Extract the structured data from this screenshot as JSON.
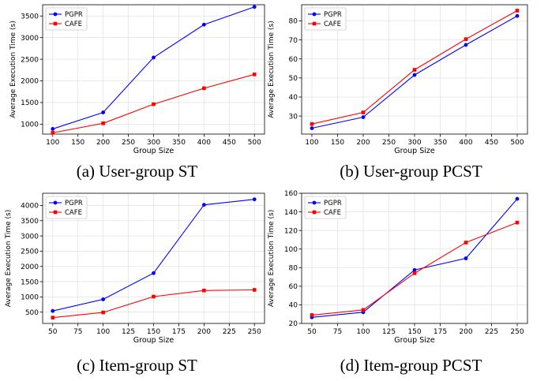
{
  "captions": [
    "(a) User-group ST",
    "(b) User-group PCST",
    "(c) Item-group ST",
    "(d) Item-group PCST"
  ],
  "colors": {
    "PGPR": "#0000ff",
    "CAFE": "#ff0000",
    "grid": "#e3e3e3"
  },
  "chart_data": [
    {
      "type": "line",
      "xlabel": "Group Size",
      "ylabel": "Average Execution Time (s)",
      "x": [
        100,
        200,
        300,
        400,
        500
      ],
      "xticks": [
        100,
        150,
        200,
        250,
        300,
        350,
        400,
        450,
        500
      ],
      "xlim": [
        80,
        520
      ],
      "yticks": [
        1000,
        1500,
        2000,
        2500,
        3000,
        3500
      ],
      "ylim": [
        770,
        3760
      ],
      "grid": true,
      "legend": "top-left",
      "series": [
        {
          "name": "PGPR",
          "marker": "circle",
          "values": [
            890,
            1270,
            2540,
            3300,
            3710
          ]
        },
        {
          "name": "CAFE",
          "marker": "square",
          "values": [
            800,
            1020,
            1460,
            1830,
            2150
          ]
        }
      ]
    },
    {
      "type": "line",
      "xlabel": "Group Size",
      "ylabel": "Average Execution Time (s)",
      "x": [
        100,
        200,
        300,
        400,
        500
      ],
      "xticks": [
        100,
        150,
        200,
        250,
        300,
        350,
        400,
        450,
        500
      ],
      "xlim": [
        80,
        520
      ],
      "yticks": [
        30,
        40,
        50,
        60,
        70,
        80
      ],
      "ylim": [
        20.5,
        88.5
      ],
      "grid": true,
      "legend": "top-left",
      "series": [
        {
          "name": "PGPR",
          "marker": "circle",
          "values": [
            23.6,
            29.4,
            51.6,
            67.4,
            82.6
          ]
        },
        {
          "name": "CAFE",
          "marker": "square",
          "values": [
            25.8,
            31.9,
            54.3,
            70.4,
            85.4
          ]
        }
      ]
    },
    {
      "type": "line",
      "xlabel": "Group Size",
      "ylabel": "Average Execution Time (s)",
      "x": [
        50,
        100,
        150,
        200,
        250
      ],
      "xticks": [
        50,
        75,
        100,
        125,
        150,
        175,
        200,
        225,
        250
      ],
      "xlim": [
        40,
        260
      ],
      "yticks": [
        500,
        1000,
        1500,
        2000,
        2500,
        3000,
        3500,
        4000
      ],
      "ylim": [
        130,
        4400
      ],
      "grid": true,
      "legend": "top-left",
      "series": [
        {
          "name": "PGPR",
          "marker": "circle",
          "values": [
            540,
            920,
            1780,
            4020,
            4200
          ]
        },
        {
          "name": "CAFE",
          "marker": "square",
          "values": [
            320,
            490,
            1010,
            1210,
            1230
          ]
        }
      ]
    },
    {
      "type": "line",
      "xlabel": "Group Size",
      "ylabel": "Average Execution Time (s)",
      "x": [
        50,
        100,
        150,
        200,
        250
      ],
      "xticks": [
        50,
        75,
        100,
        125,
        150,
        175,
        200,
        225,
        250
      ],
      "xlim": [
        40,
        260
      ],
      "yticks": [
        20,
        40,
        60,
        80,
        100,
        120,
        140,
        160
      ],
      "ylim": [
        20,
        160
      ],
      "grid": true,
      "legend": "top-left",
      "series": [
        {
          "name": "PGPR",
          "marker": "circle",
          "values": [
            26.5,
            32.0,
            77.5,
            90.0,
            154.0
          ]
        },
        {
          "name": "CAFE",
          "marker": "square",
          "values": [
            29.0,
            34.5,
            74.0,
            107.0,
            128.5
          ]
        }
      ]
    }
  ]
}
